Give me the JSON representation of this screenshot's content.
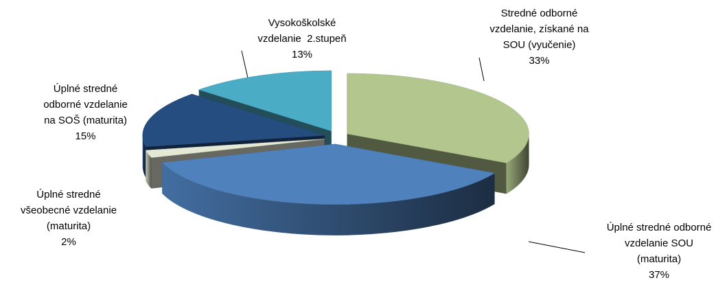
{
  "chart_data": {
    "type": "pie3d",
    "categories": [
      "Stredné odborné vzdelanie, získané na SOU (vyučenie)",
      "Úplné stredné odborné vzdelanie SOU (maturita)",
      "Úplné stredné všeobecné vzdelanie (maturita)",
      "Úplné stredné odborné vzdelanie na SOŠ (maturita)",
      "Vysokoškolské vzdelanie  2.stupeň"
    ],
    "values": [
      33,
      37,
      2,
      15,
      13
    ],
    "value_labels": [
      "33%",
      "37%",
      "2%",
      "15%",
      "13%"
    ],
    "colors": [
      "#b3c68e",
      "#4f81bd",
      "#e4e9d6",
      "#264d80",
      "#4bacc6"
    ]
  }
}
